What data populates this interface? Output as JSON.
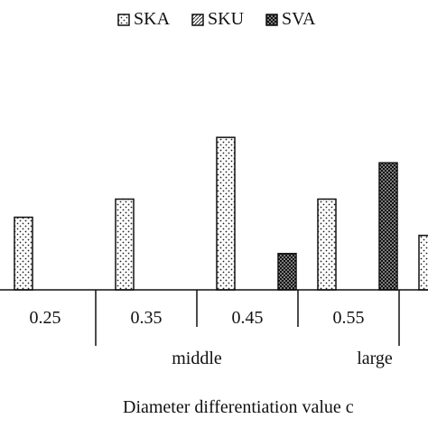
{
  "chart_data": {
    "type": "bar",
    "categories": [
      "0.25",
      "0.35",
      "0.45",
      "0.55",
      ""
    ],
    "groups": [
      "middle",
      "large"
    ],
    "series": [
      {
        "name": "SKA",
        "values": [
          2,
          2.5,
          4.2,
          2.5,
          1.5
        ],
        "pattern": "dots-sparse"
      },
      {
        "name": "SKU",
        "values": [
          null,
          null,
          null,
          null,
          null
        ],
        "pattern": "hatch"
      },
      {
        "name": "SVA",
        "values": [
          null,
          null,
          1,
          3.5,
          null
        ],
        "pattern": "dots-dense"
      }
    ],
    "xlabel": "Diameter differentiation value c",
    "title": "",
    "ylim": [
      0,
      5
    ]
  }
}
